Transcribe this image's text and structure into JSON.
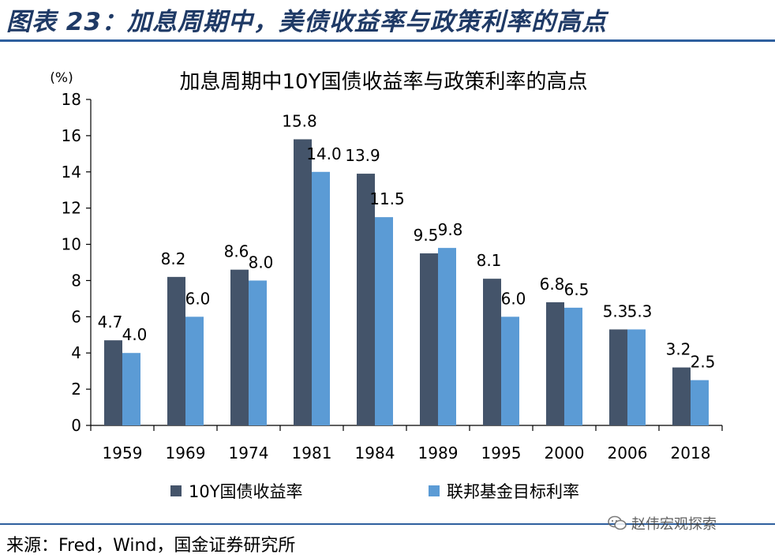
{
  "figure_title": "图表 23：加息周期中，美债收益率与政策利率的高点",
  "source_text": "来源：Fred，Wind，国金证券研究所",
  "watermark_text": "赵伟宏观探索",
  "colors": {
    "series_dark": "#44546a",
    "series_light": "#5b9bd5",
    "title_blue": "#1f3a66",
    "rule_blue": "#2e5f9e"
  },
  "chart_data": {
    "type": "bar",
    "title": "加息周期中10Y国债收益率与政策利率的高点",
    "unit_label": "(%)",
    "categories": [
      "1959",
      "1969",
      "1974",
      "1981",
      "1984",
      "1989",
      "1995",
      "2000",
      "2006",
      "2018"
    ],
    "series": [
      {
        "name": "10Y国债收益率",
        "values": [
          4.7,
          8.2,
          8.6,
          15.8,
          13.9,
          9.5,
          8.1,
          6.8,
          5.3,
          3.2
        ],
        "labels": [
          "4.7",
          "8.2",
          "8.6",
          "15.8",
          "13.9",
          "9.5",
          "8.1",
          "6.8",
          "5.3",
          "3.2"
        ]
      },
      {
        "name": "联邦基金目标利率",
        "values": [
          4.0,
          6.0,
          8.0,
          14.0,
          11.5,
          9.8,
          6.0,
          6.5,
          5.3,
          2.5
        ],
        "labels": [
          "4.0",
          "6.0",
          "8.0",
          "14.0",
          "11.5",
          "9.8",
          "6.0",
          "6.5",
          "5.3",
          "2.5"
        ]
      }
    ],
    "ylim": [
      0,
      18
    ],
    "yticks": [
      "0",
      "2",
      "4",
      "6",
      "8",
      "10",
      "12",
      "14",
      "16",
      "18"
    ],
    "grid": false,
    "legend_position": "bottom"
  }
}
